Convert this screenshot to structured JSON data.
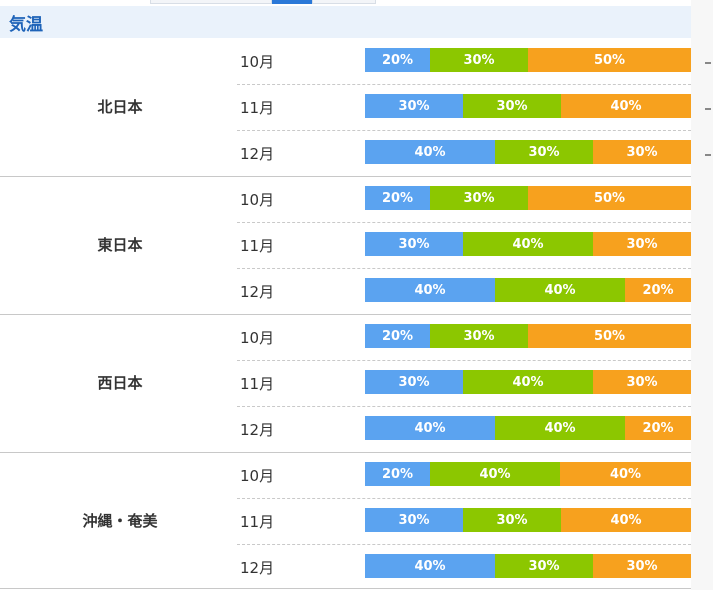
{
  "section": {
    "title": "気温"
  },
  "colors": {
    "below": "#5ba3f0",
    "normal": "#8cc700",
    "above": "#f7a11e",
    "header_text": "#1e63b8",
    "header_bg": "#eaf2fb"
  },
  "chart_data": {
    "type": "bar",
    "stacked": true,
    "orientation": "horizontal",
    "value_unit": "%",
    "title": "気温",
    "groups": [
      {
        "region": "北日本",
        "months": [
          {
            "month": "10月",
            "values": [
              20,
              30,
              50
            ]
          },
          {
            "month": "11月",
            "values": [
              30,
              30,
              40
            ]
          },
          {
            "month": "12月",
            "values": [
              40,
              30,
              30
            ]
          }
        ]
      },
      {
        "region": "東日本",
        "months": [
          {
            "month": "10月",
            "values": [
              20,
              30,
              50
            ]
          },
          {
            "month": "11月",
            "values": [
              30,
              40,
              30
            ]
          },
          {
            "month": "12月",
            "values": [
              40,
              40,
              20
            ]
          }
        ]
      },
      {
        "region": "西日本",
        "months": [
          {
            "month": "10月",
            "values": [
              20,
              30,
              50
            ]
          },
          {
            "month": "11月",
            "values": [
              30,
              40,
              30
            ]
          },
          {
            "month": "12月",
            "values": [
              40,
              40,
              20
            ]
          }
        ]
      },
      {
        "region": "沖縄・奄美",
        "months": [
          {
            "month": "10月",
            "values": [
              20,
              40,
              40
            ]
          },
          {
            "month": "11月",
            "values": [
              30,
              30,
              40
            ]
          },
          {
            "month": "12月",
            "values": [
              40,
              30,
              30
            ]
          }
        ]
      }
    ]
  }
}
